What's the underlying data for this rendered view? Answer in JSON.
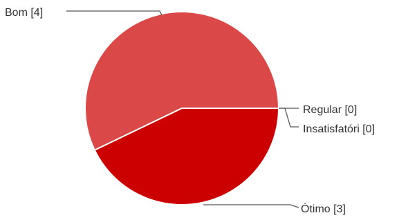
{
  "chart_data": {
    "type": "pie",
    "title": "",
    "categories": [
      "Bom",
      "Regular",
      "Insatisfatóri",
      "Ótimo"
    ],
    "values": [
      4,
      0,
      0,
      3
    ],
    "labels": [
      "Bom [4]",
      "Regular [0]",
      "Insatisfatóri [0]",
      "Ótimo [3]"
    ],
    "colors": [
      "#db4848",
      "#e06666",
      "#b45f06",
      "#cc0000"
    ],
    "legend": "none"
  }
}
